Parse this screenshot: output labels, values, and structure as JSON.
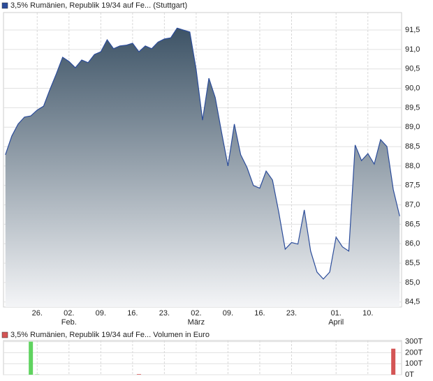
{
  "chart_data": [
    {
      "type": "area",
      "series": [
        {
          "name": "3,5% Rumänien, Republik 19/34 auf Fe... (Stuttgart)",
          "color": "#2b4c9a",
          "values": [
            88.29,
            88.77,
            89.08,
            89.26,
            89.29,
            89.44,
            89.54,
            89.97,
            90.37,
            90.8,
            90.69,
            90.53,
            90.73,
            90.66,
            90.87,
            90.94,
            91.25,
            91.02,
            91.09,
            91.11,
            91.16,
            90.94,
            91.09,
            91.02,
            91.19,
            91.27,
            91.3,
            91.55,
            91.5,
            91.45,
            90.48,
            89.18,
            90.26,
            89.76,
            88.86,
            88.0,
            89.08,
            88.29,
            87.96,
            87.5,
            87.43,
            87.87,
            87.64,
            86.8,
            85.86,
            86.03,
            85.99,
            86.87,
            85.81,
            85.27,
            85.09,
            85.27,
            86.17,
            85.92,
            85.81,
            88.54,
            88.14,
            88.32,
            88.05,
            88.68,
            88.5,
            87.39,
            86.71
          ]
        }
      ],
      "fill_top": "#3d5366",
      "fill_bottom": "#f4f5f7",
      "xlim": [
        -0.3,
        62.3
      ],
      "xticks": [
        {
          "value": 5,
          "label": "26."
        },
        {
          "value": 10,
          "label": "02."
        },
        {
          "value": 15,
          "label": "09."
        },
        {
          "value": 20,
          "label": "16."
        },
        {
          "value": 25,
          "label": "23."
        },
        {
          "value": 30,
          "label": "02."
        },
        {
          "value": 35,
          "label": "09."
        },
        {
          "value": 40,
          "label": "16."
        },
        {
          "value": 45,
          "label": "23."
        },
        {
          "value": 52,
          "label": "01."
        },
        {
          "value": 57,
          "label": "10."
        }
      ],
      "months": [
        {
          "value": 10,
          "label": "Feb."
        },
        {
          "value": 30,
          "label": "März"
        },
        {
          "value": 52,
          "label": "April"
        }
      ],
      "ylim": [
        84.37,
        91.95
      ],
      "yticks": [
        {
          "value": 84.5,
          "label": "84,5"
        },
        {
          "value": 85,
          "label": "85,0"
        },
        {
          "value": 85.5,
          "label": "85,5"
        },
        {
          "value": 86,
          "label": "86,0"
        },
        {
          "value": 86.5,
          "label": "86,5"
        },
        {
          "value": 87,
          "label": "87,0"
        },
        {
          "value": 87.5,
          "label": "87,5"
        },
        {
          "value": 88,
          "label": "88,0"
        },
        {
          "value": 88.5,
          "label": "88,5"
        },
        {
          "value": 89,
          "label": "89,0"
        },
        {
          "value": 89.5,
          "label": "89,5"
        },
        {
          "value": 90,
          "label": "90,0"
        },
        {
          "value": 90.5,
          "label": "90,5"
        },
        {
          "value": 91,
          "label": "91,0"
        },
        {
          "value": 91.5,
          "label": "91,5"
        }
      ],
      "grid": true
    },
    {
      "type": "bar",
      "series": [
        {
          "name": "3,5% Rumänien, Republik 19/34 auf Fe... Volumen in Euro",
          "color": "#d45555",
          "values": [
            0,
            0,
            0,
            0,
            300,
            3,
            0,
            0,
            0,
            0,
            0,
            0,
            0,
            0,
            0,
            0,
            0,
            0,
            0,
            0,
            0,
            5,
            0,
            0,
            0,
            0,
            0,
            0,
            0,
            0,
            0,
            0,
            0,
            0,
            0,
            0,
            0,
            0,
            0,
            0,
            0,
            0,
            0,
            0,
            0,
            0,
            0,
            0,
            0,
            0,
            0,
            0,
            0,
            0,
            0,
            0,
            0,
            0,
            0,
            0,
            0,
            236,
            0
          ]
        }
      ],
      "up_color": "#5fd35f",
      "xlim": [
        -0.3,
        62.3
      ],
      "ylim": [
        0,
        310
      ],
      "yticks": [
        {
          "value": 0,
          "label": "0T"
        },
        {
          "value": 100,
          "label": "100T"
        },
        {
          "value": 200,
          "label": "200T"
        },
        {
          "value": 300,
          "label": "300T"
        }
      ],
      "grid": true
    }
  ]
}
